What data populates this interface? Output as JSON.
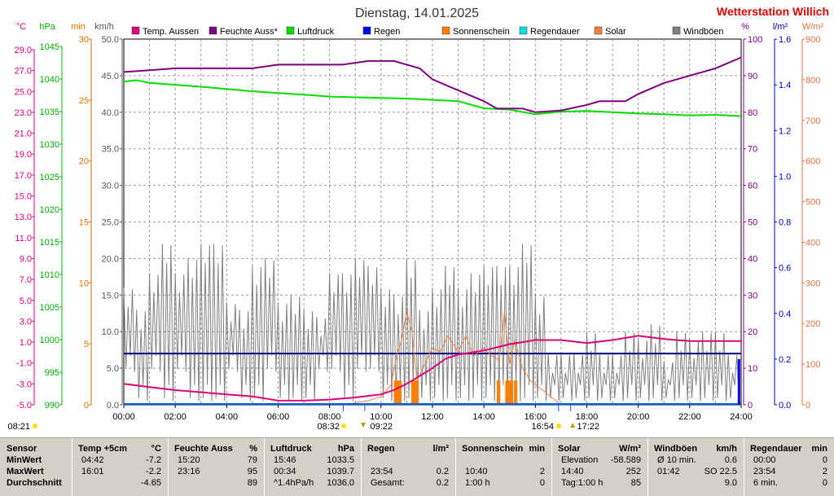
{
  "header": {
    "title": "Dienstag, 14.01.2025",
    "station": "Wetterstation Willich"
  },
  "units": {
    "temp": "°C",
    "hpa": "hPa",
    "min": "min",
    "kmh": "km/h",
    "pct": "%",
    "lm2": "l/m²",
    "wm2": "W/m²"
  },
  "legend": [
    {
      "label": "Temp. Aussen",
      "color": "#e0007a"
    },
    {
      "label": "Feuchte Auss*",
      "color": "#800080"
    },
    {
      "label": "Luftdruck",
      "color": "#00e000"
    },
    {
      "label": "Regen",
      "color": "#0000ff"
    },
    {
      "label": "Sonnenschein",
      "color": "#ff8000"
    },
    {
      "label": "Regendauer",
      "color": "#00e0e0"
    },
    {
      "label": "Solar",
      "color": "#f08040"
    },
    {
      "label": "Windböen",
      "color": "#808080"
    }
  ],
  "axes": {
    "temp_ticks": [
      "29.0",
      "27.0",
      "25.0",
      "23.0",
      "21.0",
      "19.0",
      "17.0",
      "15.0",
      "13.0",
      "11.0",
      "9.0",
      "7.0",
      "5.0",
      "3.0",
      "1.0",
      "-1.0",
      "-3.0",
      "-5.0"
    ],
    "hpa_ticks": [
      "1045",
      "1040",
      "1035",
      "1030",
      "1025",
      "1020",
      "1015",
      "1010",
      "1005",
      "1000",
      "995",
      "990"
    ],
    "min_ticks": [
      "30",
      "25",
      "20",
      "15",
      "10",
      "5",
      "0"
    ],
    "kmh_ticks": [
      "50.0",
      "45.0",
      "40.0",
      "35.0",
      "30.0",
      "25.0",
      "20.0",
      "15.0",
      "10.0",
      "5.0",
      "0.0"
    ],
    "pct_ticks": [
      "100",
      "90",
      "80",
      "70",
      "60",
      "50",
      "40",
      "30",
      "20",
      "10",
      "0"
    ],
    "lm2_ticks": [
      "1.6",
      "1.4",
      "1.2",
      "1.0",
      "0.8",
      "0.6",
      "0.4",
      "0.2",
      "0.0"
    ],
    "wm2_ticks": [
      "900",
      "800",
      "700",
      "600",
      "500",
      "400",
      "300",
      "200",
      "100",
      "0"
    ],
    "x_ticks": [
      "00:00",
      "02:00",
      "04:00",
      "06:00",
      "08:00",
      "10:00",
      "12:00",
      "14:00",
      "16:00",
      "18:00",
      "20:00",
      "22:00",
      "24:00"
    ]
  },
  "events": {
    "moonset": "08:21",
    "sunrise": "08:32",
    "noon": "09:22",
    "sunset": "16:54",
    "moonrise": "17:22"
  },
  "chart_data": {
    "type": "line",
    "title": "Dienstag, 14.01.2025",
    "x_unit": "hours",
    "xlim": [
      0,
      24
    ],
    "grid": true,
    "series": [
      {
        "name": "Temp. Aussen",
        "axis": "°C",
        "ylim": [
          -5,
          30
        ],
        "points": [
          [
            0,
            -3.0
          ],
          [
            1,
            -3.3
          ],
          [
            2,
            -3.6
          ],
          [
            3,
            -3.8
          ],
          [
            4,
            -4.0
          ],
          [
            5,
            -4.2
          ],
          [
            6,
            -4.6
          ],
          [
            7,
            -4.6
          ],
          [
            8,
            -4.5
          ],
          [
            9,
            -4.3
          ],
          [
            10,
            -4.0
          ],
          [
            10.5,
            -3.6
          ],
          [
            11,
            -3.0
          ],
          [
            12,
            -1.5
          ],
          [
            12.5,
            -0.6
          ],
          [
            13,
            -0.2
          ],
          [
            14,
            0.2
          ],
          [
            15,
            0.8
          ],
          [
            16,
            1.2
          ],
          [
            17,
            1.2
          ],
          [
            18,
            0.9
          ],
          [
            19,
            1.2
          ],
          [
            20,
            1.6
          ],
          [
            21,
            1.3
          ],
          [
            22,
            1.1
          ],
          [
            24,
            1.1
          ]
        ]
      },
      {
        "name": "Feuchte Auss*",
        "axis": "%",
        "ylim": [
          0,
          100
        ],
        "points": [
          [
            0,
            91
          ],
          [
            1,
            91.5
          ],
          [
            2,
            92
          ],
          [
            5,
            92
          ],
          [
            6,
            93
          ],
          [
            8.5,
            93
          ],
          [
            9.5,
            94
          ],
          [
            10.5,
            94
          ],
          [
            11.5,
            92
          ],
          [
            12,
            89
          ],
          [
            13,
            86
          ],
          [
            14,
            83
          ],
          [
            14.5,
            81
          ],
          [
            15.5,
            81
          ],
          [
            16,
            80
          ],
          [
            17,
            80.5
          ],
          [
            18,
            82
          ],
          [
            18.5,
            83
          ],
          [
            19.5,
            83
          ],
          [
            20,
            85
          ],
          [
            21,
            88
          ],
          [
            22,
            90
          ],
          [
            23,
            92
          ],
          [
            24,
            95
          ]
        ]
      },
      {
        "name": "Luftdruck",
        "axis": "hPa",
        "ylim": [
          990,
          1046
        ],
        "points": [
          [
            0,
            1039.5
          ],
          [
            0.5,
            1039.7
          ],
          [
            1,
            1039.3
          ],
          [
            3,
            1038.7
          ],
          [
            5,
            1038.0
          ],
          [
            7,
            1037.5
          ],
          [
            8,
            1037.2
          ],
          [
            10,
            1037.0
          ],
          [
            11,
            1036.9
          ],
          [
            12,
            1036.7
          ],
          [
            13,
            1036.5
          ],
          [
            14,
            1035.4
          ],
          [
            15,
            1035.2
          ],
          [
            16,
            1034.5
          ],
          [
            17,
            1034.9
          ],
          [
            18,
            1035.0
          ],
          [
            19,
            1034.8
          ],
          [
            20,
            1034.6
          ],
          [
            21,
            1034.5
          ],
          [
            22,
            1034.3
          ],
          [
            23,
            1034.4
          ],
          [
            24,
            1034.2
          ]
        ]
      },
      {
        "name": "Windböen",
        "axis": "km/h",
        "ylim": [
          0,
          50
        ],
        "range_points": [
          [
            0,
            4,
            16
          ],
          [
            0.5,
            0,
            13
          ],
          [
            1,
            4,
            18
          ],
          [
            1.5,
            0,
            22
          ],
          [
            2,
            4,
            18
          ],
          [
            2.5,
            0,
            20
          ],
          [
            3,
            0,
            22
          ],
          [
            3.5,
            0,
            22
          ],
          [
            4,
            4,
            14
          ],
          [
            4.5,
            0,
            13
          ],
          [
            5,
            0,
            19
          ],
          [
            5.5,
            4,
            20
          ],
          [
            6,
            0,
            14
          ],
          [
            6.5,
            0,
            15
          ],
          [
            7,
            0,
            13
          ],
          [
            7.5,
            4,
            12
          ],
          [
            8,
            4,
            18
          ],
          [
            8.5,
            0,
            18
          ],
          [
            9,
            4,
            20
          ],
          [
            9.5,
            4,
            19
          ],
          [
            10,
            0,
            16
          ],
          [
            10.5,
            0,
            15
          ],
          [
            11,
            0,
            20
          ],
          [
            11.5,
            0,
            13
          ],
          [
            12,
            0,
            16
          ],
          [
            12.5,
            0,
            19
          ],
          [
            13,
            0,
            16
          ],
          [
            13.5,
            0,
            18
          ],
          [
            14,
            0,
            19
          ],
          [
            14.5,
            0,
            19
          ],
          [
            15,
            0,
            19
          ],
          [
            15.5,
            0,
            22
          ],
          [
            16,
            0,
            15
          ],
          [
            16.5,
            0,
            7
          ],
          [
            17,
            0,
            7
          ],
          [
            17.5,
            0,
            7
          ],
          [
            18,
            0,
            10
          ],
          [
            18.5,
            0,
            7
          ],
          [
            19,
            0,
            7
          ],
          [
            19.5,
            0,
            10
          ],
          [
            20,
            0,
            9
          ],
          [
            20.5,
            0,
            11
          ],
          [
            21,
            0,
            6
          ],
          [
            21.5,
            0,
            10
          ],
          [
            22,
            0,
            9
          ],
          [
            22.5,
            0,
            10
          ],
          [
            23,
            0,
            10
          ],
          [
            23.5,
            0,
            7
          ]
        ]
      },
      {
        "name": "Solar",
        "axis": "W/m²",
        "ylim": [
          0,
          900
        ],
        "points": [
          [
            8.6,
            0
          ],
          [
            9,
            5
          ],
          [
            9.5,
            10
          ],
          [
            10,
            20
          ],
          [
            10.4,
            50
          ],
          [
            10.6,
            120
          ],
          [
            10.8,
            160
          ],
          [
            11,
            230
          ],
          [
            11.2,
            180
          ],
          [
            11.4,
            60
          ],
          [
            11.7,
            100
          ],
          [
            12,
            140
          ],
          [
            12.3,
            130
          ],
          [
            12.6,
            170
          ],
          [
            13,
            130
          ],
          [
            13.3,
            170
          ],
          [
            13.6,
            120
          ],
          [
            14,
            140
          ],
          [
            14.3,
            120
          ],
          [
            14.6,
            110
          ],
          [
            14.8,
            230
          ],
          [
            15,
            100
          ],
          [
            15.2,
            160
          ],
          [
            15.5,
            90
          ],
          [
            15.8,
            60
          ],
          [
            16.2,
            40
          ],
          [
            16.6,
            20
          ],
          [
            17,
            0
          ]
        ]
      },
      {
        "name": "Sonnenschein",
        "axis": "min",
        "ylim": [
          0,
          30
        ],
        "bars": [
          [
            10.5,
            10.83,
            2
          ],
          [
            10.83,
            11.17,
            0
          ],
          [
            11.17,
            11.5,
            2
          ],
          [
            14.5,
            14.67,
            2
          ],
          [
            14.83,
            15.17,
            2
          ],
          [
            15.17,
            15.33,
            2
          ]
        ]
      },
      {
        "name": "Regen",
        "axis": "l/m²",
        "ylim": [
          0,
          1.6
        ],
        "points": [
          [
            23.9,
            0
          ],
          [
            23.9,
            0.2
          ]
        ]
      },
      {
        "name": "Blue reference",
        "axis": "km/h",
        "ylim": [
          0,
          50
        ],
        "points": [
          [
            0,
            7.0
          ],
          [
            24,
            7.0
          ]
        ]
      }
    ]
  },
  "summary": {
    "columns": [
      {
        "title": "Sensor",
        "unit": "",
        "rows": [
          "MinWert",
          "MaxWert",
          "Durchschnitt"
        ]
      },
      {
        "title": "Temp +5cm",
        "unit": "°C",
        "rows": [
          [
            "04:42",
            "-7.2"
          ],
          [
            "16:01",
            "-2.2"
          ],
          [
            "",
            "-4.65"
          ]
        ]
      },
      {
        "title": "Feuchte Auss",
        "unit": "%",
        "rows": [
          [
            "15:20",
            "79"
          ],
          [
            "23:16",
            "95"
          ],
          [
            "",
            "89"
          ]
        ]
      },
      {
        "title": "Luftdruck",
        "unit": "hPa",
        "rows": [
          [
            "15:46",
            "1033.5"
          ],
          [
            "00:34",
            "1039.7"
          ],
          [
            "^1.4hPa/h",
            "1036.0"
          ]
        ]
      },
      {
        "title": "Regen",
        "unit": "l/m²",
        "rows": [
          [
            "",
            ""
          ],
          [
            "23:54",
            "0.2"
          ],
          [
            "Gesamt:",
            "0.2"
          ]
        ]
      },
      {
        "title": "Sonnenschein",
        "unit": "min",
        "rows": [
          [
            "",
            ""
          ],
          [
            "10:40",
            "2"
          ],
          [
            "1:00 h",
            "0"
          ]
        ]
      },
      {
        "title": "Solar",
        "unit": "W/m²",
        "rows": [
          [
            "Elevation",
            "-58.589"
          ],
          [
            "14:40",
            "252"
          ],
          [
            "Tag:1:00 h",
            "85"
          ]
        ]
      },
      {
        "title": "Windböen",
        "unit": "km/h",
        "rows": [
          [
            "Ø 10 min.",
            "0.6"
          ],
          [
            "01:42",
            "SO 22.5"
          ],
          [
            "",
            "9.0"
          ]
        ]
      },
      {
        "title": "Regendauer",
        "unit": "min",
        "rows": [
          [
            "00:00",
            "0"
          ],
          [
            "23:54",
            "2"
          ],
          [
            "6 min.",
            "0"
          ]
        ]
      }
    ]
  }
}
